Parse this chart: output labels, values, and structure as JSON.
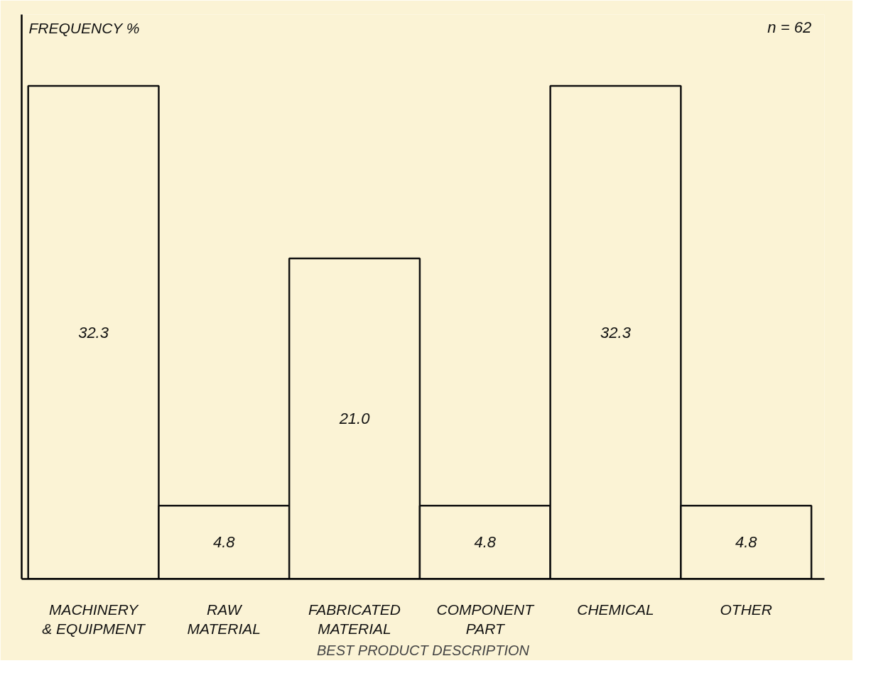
{
  "chart_data": {
    "type": "bar",
    "ylabel": "FREQUENCY %",
    "xlabel": "BEST PRODUCT DESCRIPTION",
    "categories": [
      "MACHINERY\n& EQUIPMENT",
      "RAW\nMATERIAL",
      "FABRICATED\nMATERIAL",
      "COMPONENT\nPART",
      "CHEMICAL",
      "OTHER"
    ],
    "values": [
      32.3,
      4.8,
      21.0,
      4.8,
      32.3,
      4.8
    ],
    "value_labels": [
      "32.3",
      "4.8",
      "21.0",
      "4.8",
      "32.3",
      "4.8"
    ],
    "color": "#fbf3d5",
    "tick_labels": "x",
    "annotations": [
      "n = 62"
    ]
  }
}
